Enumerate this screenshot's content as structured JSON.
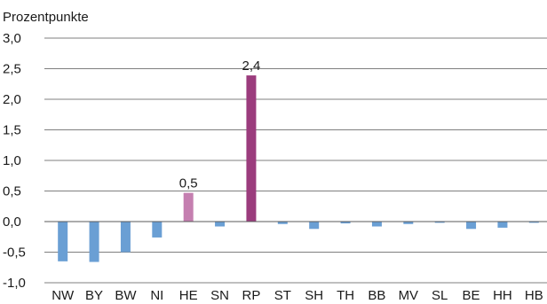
{
  "chart_data": {
    "type": "bar",
    "unit_label": "Prozentpunkte",
    "categories": [
      "NW",
      "BY",
      "BW",
      "NI",
      "HE",
      "SN",
      "RP",
      "ST",
      "SH",
      "TH",
      "BB",
      "MV",
      "SL",
      "BE",
      "HH",
      "HB"
    ],
    "values": [
      -0.65,
      -0.66,
      -0.5,
      -0.26,
      0.47,
      -0.08,
      2.39,
      -0.04,
      -0.12,
      -0.03,
      -0.08,
      -0.04,
      -0.02,
      -0.12,
      -0.1,
      -0.02
    ],
    "ylim": [
      -1.0,
      3.0
    ],
    "yticks": [
      -1.0,
      -0.5,
      0.0,
      0.5,
      1.0,
      1.5,
      2.0,
      2.5,
      3.0
    ],
    "ytick_labels": [
      "-1,0",
      "-0,5",
      "0,0",
      "0,5",
      "1,0",
      "1,5",
      "2,0",
      "2,5",
      "3,0"
    ],
    "grid": true,
    "data_labels": [
      {
        "category": "HE",
        "text": "0,5"
      },
      {
        "category": "RP",
        "text": "2,4"
      }
    ],
    "colors": {
      "default": "#6a9fd4",
      "highlight_light": "#c57fb0",
      "highlight_dark": "#9b3c7d"
    },
    "bar_colors": {
      "HE": "#c57fb0",
      "RP": "#9b3c7d"
    }
  }
}
